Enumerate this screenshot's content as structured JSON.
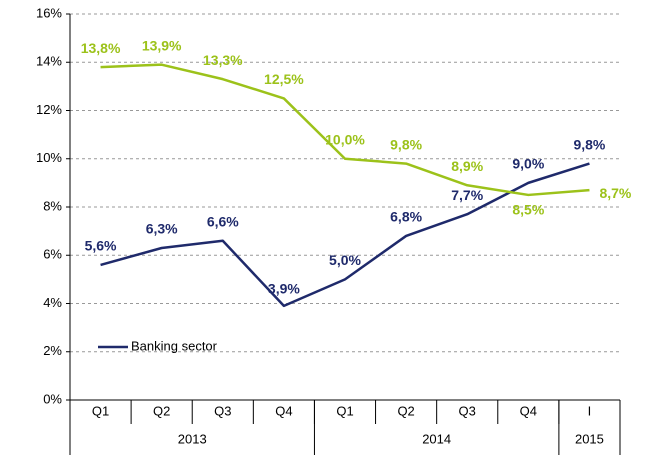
{
  "chart_data": {
    "type": "line",
    "categories": [
      "Q1",
      "Q2",
      "Q3",
      "Q4",
      "Q1",
      "Q2",
      "Q3",
      "Q4",
      "I"
    ],
    "groups": [
      "2013",
      "2014",
      "2015"
    ],
    "series": [
      {
        "name": "Banking sector",
        "color": "#1f2a6b",
        "values": [
          5.6,
          6.3,
          6.6,
          3.9,
          5.0,
          6.8,
          7.7,
          9.0,
          9.8
        ],
        "value_labels": [
          "5,6%",
          "6,3%",
          "6,6%",
          "3,9%",
          "5,0%",
          "6,8%",
          "7,7%",
          "9,0%",
          "9,8%"
        ]
      },
      {
        "color": "#9cc21a",
        "values": [
          13.8,
          13.9,
          13.3,
          12.5,
          10.0,
          9.8,
          8.9,
          8.5,
          8.7
        ],
        "value_labels": [
          "13,8%",
          "13,9%",
          "13,3%",
          "12,5%",
          "10,0%",
          "9,8%",
          "8,9%",
          "8,5%",
          "8,7%"
        ]
      }
    ],
    "ylim": [
      0,
      16
    ],
    "yticks": [
      {
        "value": 0,
        "label": "0%"
      },
      {
        "value": 2,
        "label": "2%"
      },
      {
        "value": 4,
        "label": "4%"
      },
      {
        "value": 6,
        "label": "6%"
      },
      {
        "value": 8,
        "label": "8%"
      },
      {
        "value": 10,
        "label": "10%"
      },
      {
        "value": 12,
        "label": "12%"
      },
      {
        "value": 14,
        "label": "14%"
      },
      {
        "value": 16,
        "label": "16%"
      }
    ],
    "grid": true
  }
}
